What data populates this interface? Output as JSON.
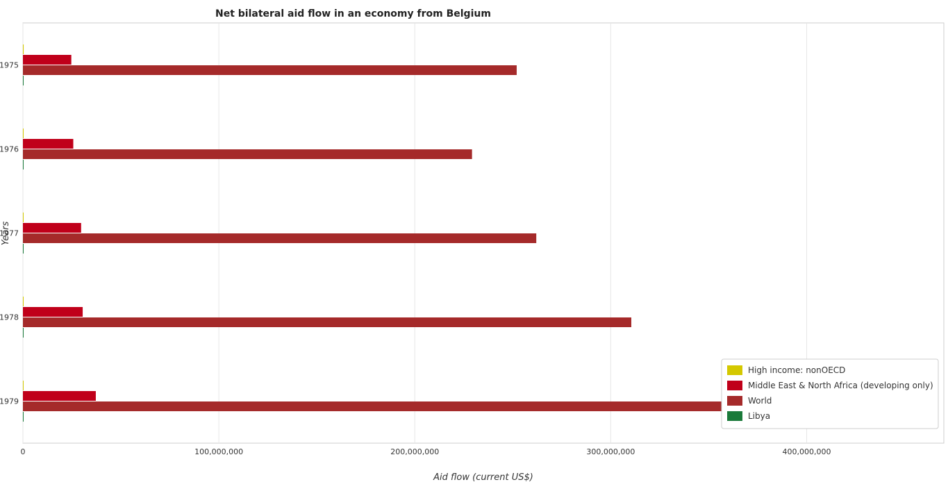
{
  "chart_data": {
    "type": "bar",
    "orientation": "horizontal",
    "title": "Net bilateral aid flow in an economy from Belgium",
    "xlabel": "Aid flow (current US$)",
    "ylabel": "Years",
    "categories": [
      "1975",
      "1976",
      "1977",
      "1978",
      "1979"
    ],
    "xlim": [
      0,
      470000000
    ],
    "xticks": [
      0,
      100000000,
      200000000,
      300000000,
      400000000
    ],
    "xtick_labels": [
      "0",
      "100,000,000",
      "200,000,000",
      "300,000,000",
      "400,000,000"
    ],
    "series": [
      {
        "name": "High income: nonOECD",
        "color": "#d4c800",
        "values": [
          380000,
          320000,
          200000,
          270000,
          200000
        ]
      },
      {
        "name": "Middle East & North Africa (developing only)",
        "color": "#c0001a",
        "values": [
          24700000,
          25700000,
          29700000,
          30500000,
          37200000
        ]
      },
      {
        "name": "World",
        "color": "#a52a2a",
        "values": [
          252000000,
          229200000,
          262000000,
          310500000,
          444800000
        ]
      },
      {
        "name": "Libya",
        "color": "#1a7a3a",
        "values": [
          60000,
          60000,
          40000,
          80000,
          30000
        ]
      }
    ],
    "legend_position": "bottom-right",
    "grid": true
  }
}
